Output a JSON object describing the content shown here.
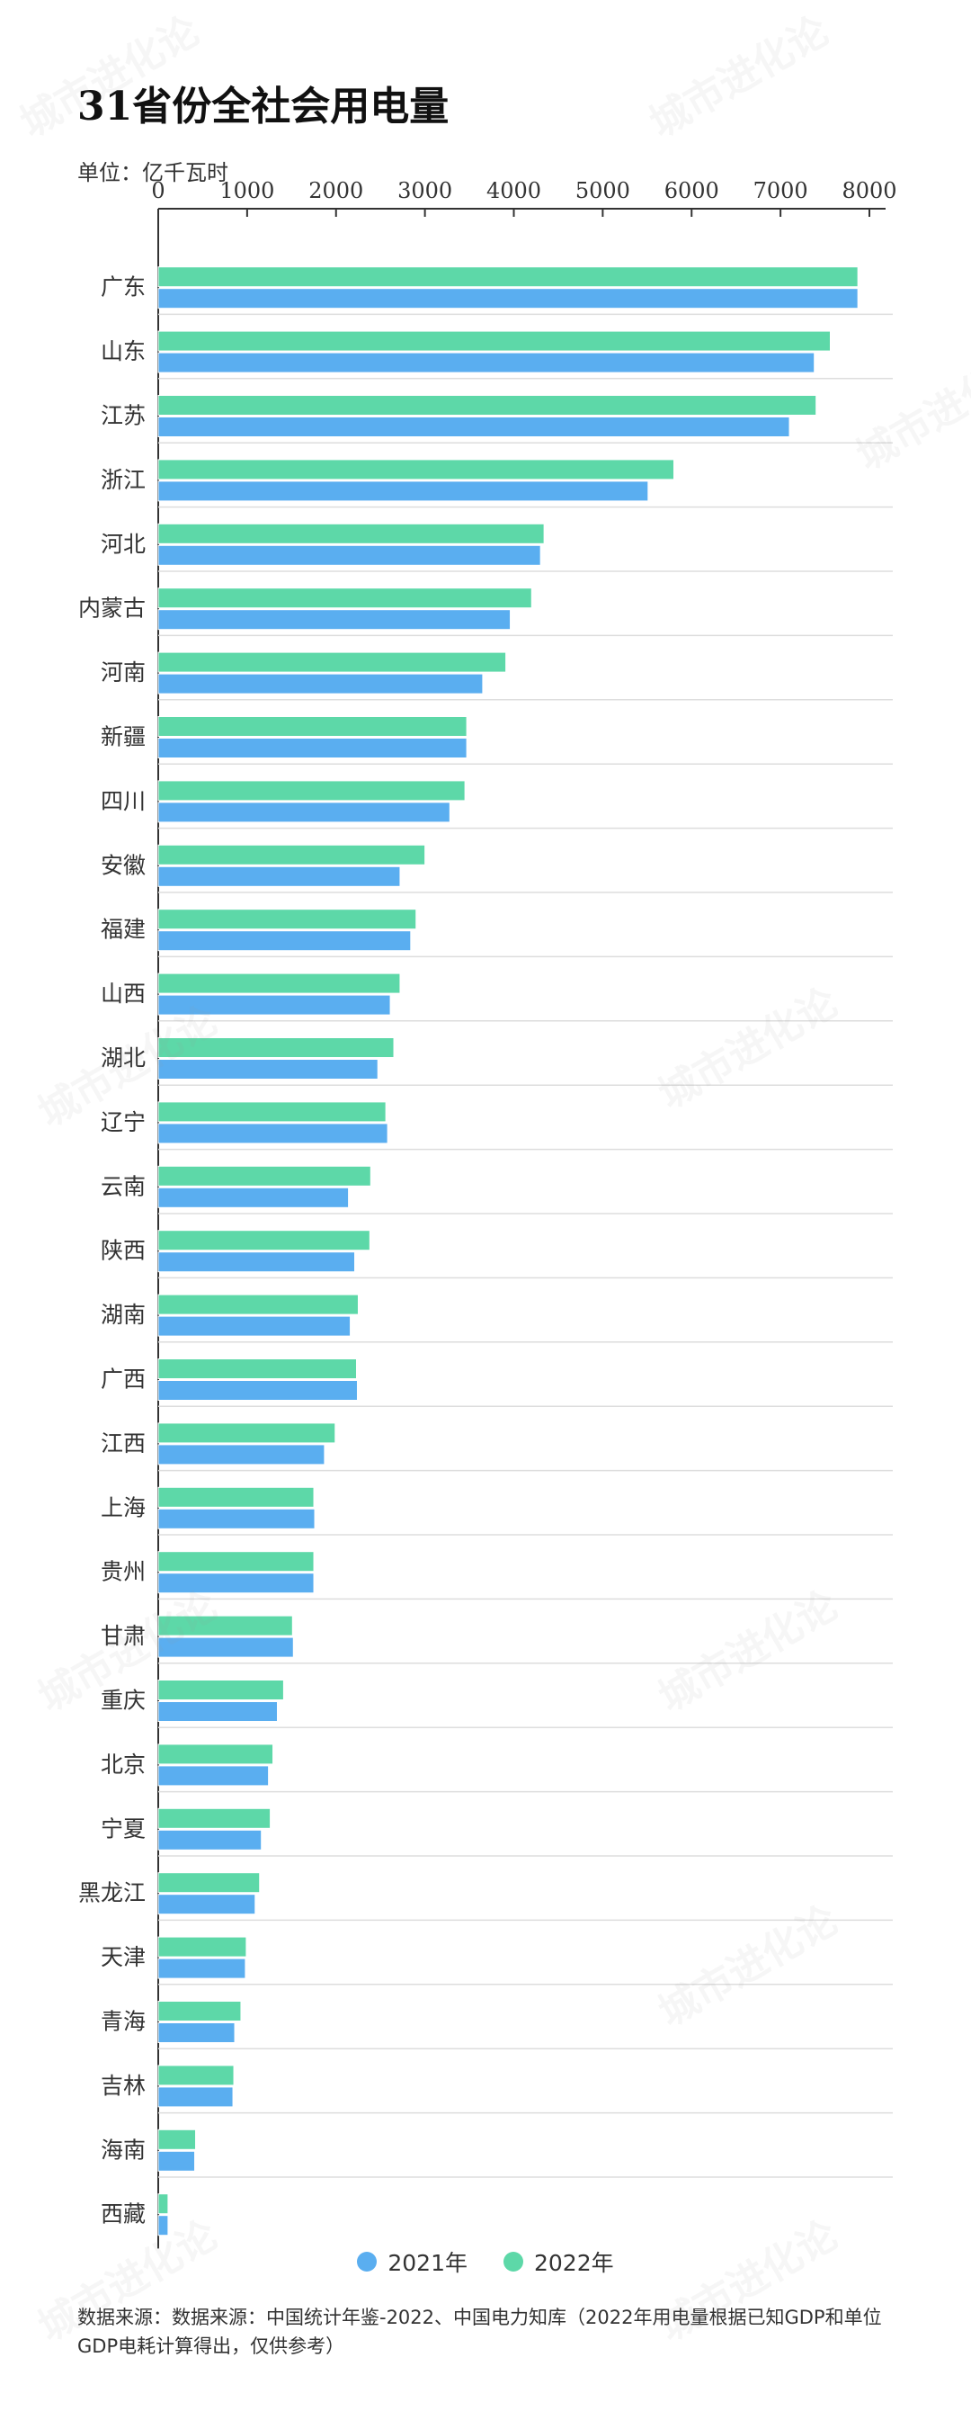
{
  "title": "31省份全社会用电量",
  "unit": "单位：亿千瓦时",
  "legend": {
    "series2021": "2021年",
    "series2022": "2022年"
  },
  "source": "数据来源：数据来源：中国统计年鉴-2022、中国电力知库（2022年用电量根据已知GDP和单位GDP电耗计算得出，仅供参考）",
  "watermark": "城市进化论",
  "colors": {
    "s2021": "#5aaef0",
    "s2022": "#5dd8a8",
    "axis": "#333333",
    "grid": "#dddddd"
  },
  "chart_data": {
    "type": "bar",
    "orientation": "horizontal",
    "title": "31省份全社会用电量",
    "unit": "亿千瓦时",
    "xlim": [
      0,
      8000
    ],
    "xticks": [
      0,
      1000,
      2000,
      3000,
      4000,
      5000,
      6000,
      7000,
      8000
    ],
    "categories": [
      "广东",
      "山东",
      "江苏",
      "浙江",
      "河北",
      "内蒙古",
      "河南",
      "新疆",
      "四川",
      "安徽",
      "福建",
      "山西",
      "湖北",
      "辽宁",
      "云南",
      "陕西",
      "湖南",
      "广西",
      "江西",
      "上海",
      "贵州",
      "甘肃",
      "重庆",
      "北京",
      "宁夏",
      "黑龙江",
      "天津",
      "青海",
      "吉林",
      "海南",
      "西藏"
    ],
    "series": [
      {
        "name": "2022年",
        "values": [
          7870,
          7560,
          7400,
          5800,
          4340,
          4200,
          3910,
          3470,
          3450,
          3000,
          2900,
          2720,
          2650,
          2560,
          2390,
          2380,
          2250,
          2230,
          1990,
          1750,
          1750,
          1510,
          1410,
          1290,
          1260,
          1140,
          990,
          930,
          850,
          420,
          110
        ]
      },
      {
        "name": "2021年",
        "values": [
          7870,
          7380,
          7100,
          5510,
          4300,
          3960,
          3650,
          3470,
          3280,
          2720,
          2840,
          2610,
          2470,
          2580,
          2140,
          2210,
          2160,
          2240,
          1870,
          1760,
          1750,
          1520,
          1340,
          1240,
          1160,
          1090,
          980,
          860,
          840,
          410,
          110
        ]
      }
    ],
    "legend_position": "bottom",
    "grid": false
  }
}
